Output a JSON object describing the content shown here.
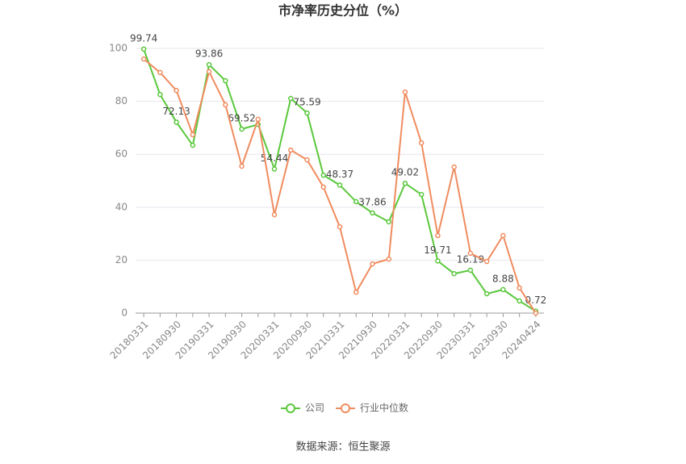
{
  "chart_data": {
    "type": "line",
    "title": "市净率历史分位（%）",
    "source": "数据来源：恒生聚源",
    "categories": [
      "20180331",
      null,
      "20180930",
      null,
      "20190331",
      null,
      "20190930",
      null,
      "20200331",
      null,
      "20200930",
      null,
      "20210331",
      null,
      "20210930",
      null,
      "20220331",
      null,
      "20220930",
      null,
      "20230331",
      null,
      "20230930",
      null,
      "20240424"
    ],
    "series": [
      {
        "name": "公司",
        "color": "#5ac83c",
        "label_every": 2,
        "values": [
          99.74,
          82.6,
          72.13,
          63.4,
          93.86,
          87.8,
          69.52,
          71.3,
          54.44,
          81.1,
          75.59,
          52.1,
          48.37,
          42.1,
          37.86,
          34.5,
          49.02,
          44.8,
          19.71,
          14.9,
          16.19,
          7.3,
          8.88,
          4.6,
          0.72
        ]
      },
      {
        "name": "行业中位数",
        "color": "#f08c5f",
        "values": [
          96.0,
          90.9,
          84.1,
          67.4,
          91.2,
          78.7,
          55.5,
          73.2,
          37.2,
          61.6,
          57.9,
          47.6,
          32.6,
          7.9,
          18.6,
          20.4,
          83.5,
          64.3,
          29.3,
          55.2,
          22.6,
          19.5,
          29.3,
          9.5,
          0.0
        ]
      }
    ],
    "ylim": [
      0,
      100
    ],
    "yticks": [
      0,
      20,
      40,
      60,
      80,
      100
    ],
    "grid": true,
    "legend": "bottom"
  }
}
